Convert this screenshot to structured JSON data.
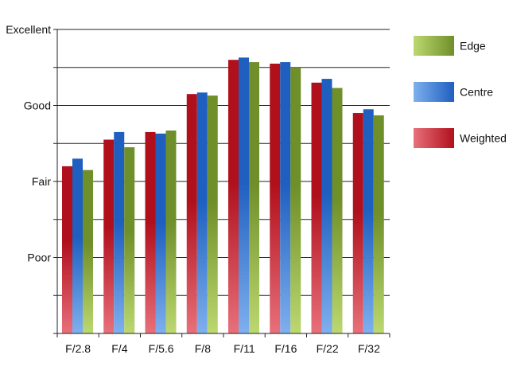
{
  "chart_data": {
    "type": "bar",
    "categories": [
      "F/2.8",
      "F/4",
      "F/5.6",
      "F/8",
      "F/11",
      "F/16",
      "F/22",
      "F/32"
    ],
    "ylim": [
      0,
      4
    ],
    "y_tick_labels": [
      {
        "value": 1,
        "label": "Poor"
      },
      {
        "value": 2,
        "label": "Fair"
      },
      {
        "value": 3,
        "label": "Good"
      },
      {
        "value": 4,
        "label": "Excellent"
      }
    ],
    "grid": true,
    "legend_position": "right",
    "series": [
      {
        "name": "Weighted",
        "color_top": "#b0101c",
        "color_bottom": "#e8707a",
        "values": [
          2.2,
          2.55,
          2.65,
          3.15,
          3.6,
          3.55,
          3.3,
          2.9
        ]
      },
      {
        "name": "Centre",
        "color_top": "#1e5fc0",
        "color_bottom": "#7fb0ee",
        "values": [
          2.3,
          2.65,
          2.63,
          3.17,
          3.63,
          3.57,
          3.35,
          2.95
        ]
      },
      {
        "name": "Edge",
        "color_top": "#6f8f2a",
        "color_bottom": "#bcd870",
        "values": [
          2.15,
          2.45,
          2.67,
          3.13,
          3.57,
          3.5,
          3.23,
          2.87
        ]
      }
    ],
    "legend_order": [
      "Edge",
      "Centre",
      "Weighted"
    ]
  }
}
